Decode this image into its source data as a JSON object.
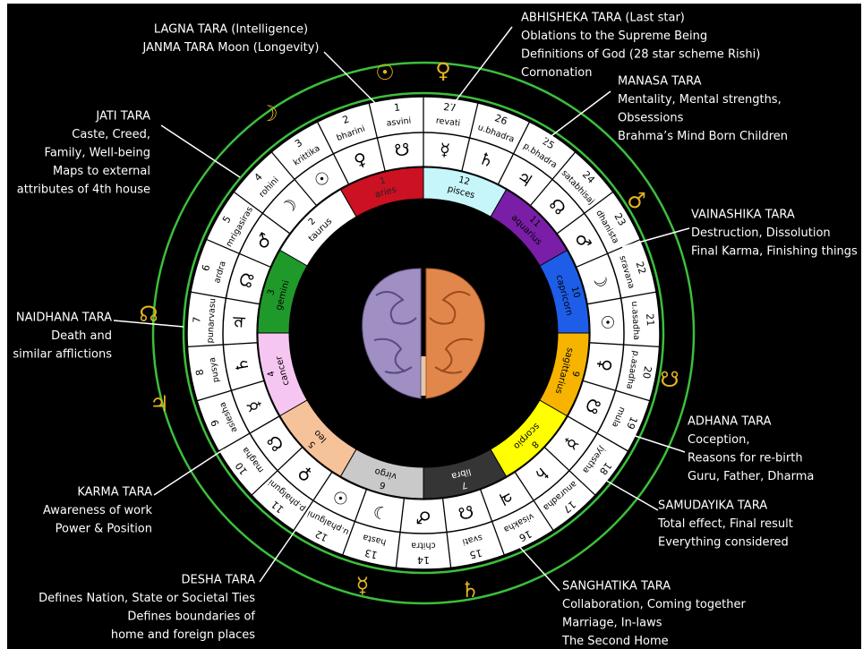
{
  "nakshatras": [
    {
      "number": 1,
      "name": "asvini",
      "lord": "☋"
    },
    {
      "number": 2,
      "name": "bharini",
      "lord": "♀"
    },
    {
      "number": 3,
      "name": "krittika",
      "lord": "☉"
    },
    {
      "number": 4,
      "name": "rohini",
      "lord": "☽"
    },
    {
      "number": 5,
      "name": "mrigasiras",
      "lord": "♂"
    },
    {
      "number": 6,
      "name": "ardra",
      "lord": "☊"
    },
    {
      "number": 7,
      "name": "punarvasu",
      "lord": "♃"
    },
    {
      "number": 8,
      "name": "pusya",
      "lord": "♄"
    },
    {
      "number": 9,
      "name": "aslesha",
      "lord": "☿"
    },
    {
      "number": 10,
      "name": "magha",
      "lord": "☋"
    },
    {
      "number": 11,
      "name": "p.phalguni",
      "lord": "♀"
    },
    {
      "number": 12,
      "name": "u.phalguni",
      "lord": "☉"
    },
    {
      "number": 13,
      "name": "hasta",
      "lord": "☽"
    },
    {
      "number": 14,
      "name": "chitra",
      "lord": "♂"
    },
    {
      "number": 15,
      "name": "svati",
      "lord": "☊"
    },
    {
      "number": 16,
      "name": "visakha",
      "lord": "♃"
    },
    {
      "number": 17,
      "name": "anuradha",
      "lord": "♄"
    },
    {
      "number": 18,
      "name": "jyestha",
      "lord": "☿"
    },
    {
      "number": 19,
      "name": "mula",
      "lord": "☋"
    },
    {
      "number": 20,
      "name": "p.asadha",
      "lord": "♀"
    },
    {
      "number": 21,
      "name": "u.asadha",
      "lord": "☉"
    },
    {
      "number": 22,
      "name": "sravana",
      "lord": "☽"
    },
    {
      "number": 23,
      "name": "dhanista",
      "lord": "♂"
    },
    {
      "number": 24,
      "name": "satabhisaj",
      "lord": "☊"
    },
    {
      "number": 25,
      "name": "p.bhadra",
      "lord": "♃"
    },
    {
      "number": 26,
      "name": "u.bhadra",
      "lord": "♄"
    },
    {
      "number": 27,
      "name": "revati",
      "lord": "☿"
    }
  ],
  "signs": [
    {
      "number": 1,
      "name": "aries"
    },
    {
      "number": 2,
      "name": "taurus"
    },
    {
      "number": 3,
      "name": "gemini"
    },
    {
      "number": 4,
      "name": "cancer"
    },
    {
      "number": 5,
      "name": "leo"
    },
    {
      "number": 6,
      "name": "virgo"
    },
    {
      "number": 7,
      "name": "libra"
    },
    {
      "number": 8,
      "name": "scorpio"
    },
    {
      "number": 9,
      "name": "sagittarius"
    },
    {
      "number": 10,
      "name": "capricorn"
    },
    {
      "number": 11,
      "name": "aquarius"
    },
    {
      "number": 12,
      "name": "pisces"
    }
  ],
  "outer_glyphs": [
    "☉",
    "♀",
    "☽",
    "♂",
    "☋",
    "♄",
    "☿",
    "♃",
    "☊"
  ],
  "annotations": [
    {
      "lines": [
        "LAGNA TARA (Intelligence)",
        "JANMA TARA Moon (Longevity)"
      ]
    },
    {
      "lines": [
        "ABHISHEKA TARA (Last star)",
        "Oblations to the Supreme Being",
        "Definitions of God (28 star scheme Rishi)",
        "Cornonation"
      ]
    },
    {
      "lines": [
        "MANASA TARA",
        "Mentality, Mental strengths,",
        "Obsessions",
        "Brahma’s Mind Born Children"
      ]
    },
    {
      "lines": [
        "JATI TARA",
        "Caste, Creed,",
        "Family, Well-being",
        "Maps to external",
        "attributes of 4th house"
      ]
    },
    {
      "lines": [
        "VAINASHIKA TARA",
        "Destruction, Dissolution",
        "Final Karma, Finishing things"
      ]
    },
    {
      "lines": [
        "NAIDHANA TARA",
        "Death and",
        "similar afflictions"
      ]
    },
    {
      "lines": [
        "ADHANA TARA",
        "Coception,",
        "Reasons for re-birth",
        "Guru, Father, Dharma"
      ]
    },
    {
      "lines": [
        "KARMA TARA",
        "Awareness of work",
        "Power & Position"
      ]
    },
    {
      "lines": [
        "SAMUDAYIKA TARA",
        "Total effect, Final result",
        "Everything considered"
      ]
    },
    {
      "lines": [
        "DESHA TARA",
        "Defines Nation, State or Societal Ties",
        "Defines boundaries of",
        "home and foreign places"
      ]
    },
    {
      "lines": [
        "SANGHATIKA TARA",
        "Collaboration, Coming together",
        "Marriage, In-laws",
        "The Second Home"
      ]
    }
  ]
}
